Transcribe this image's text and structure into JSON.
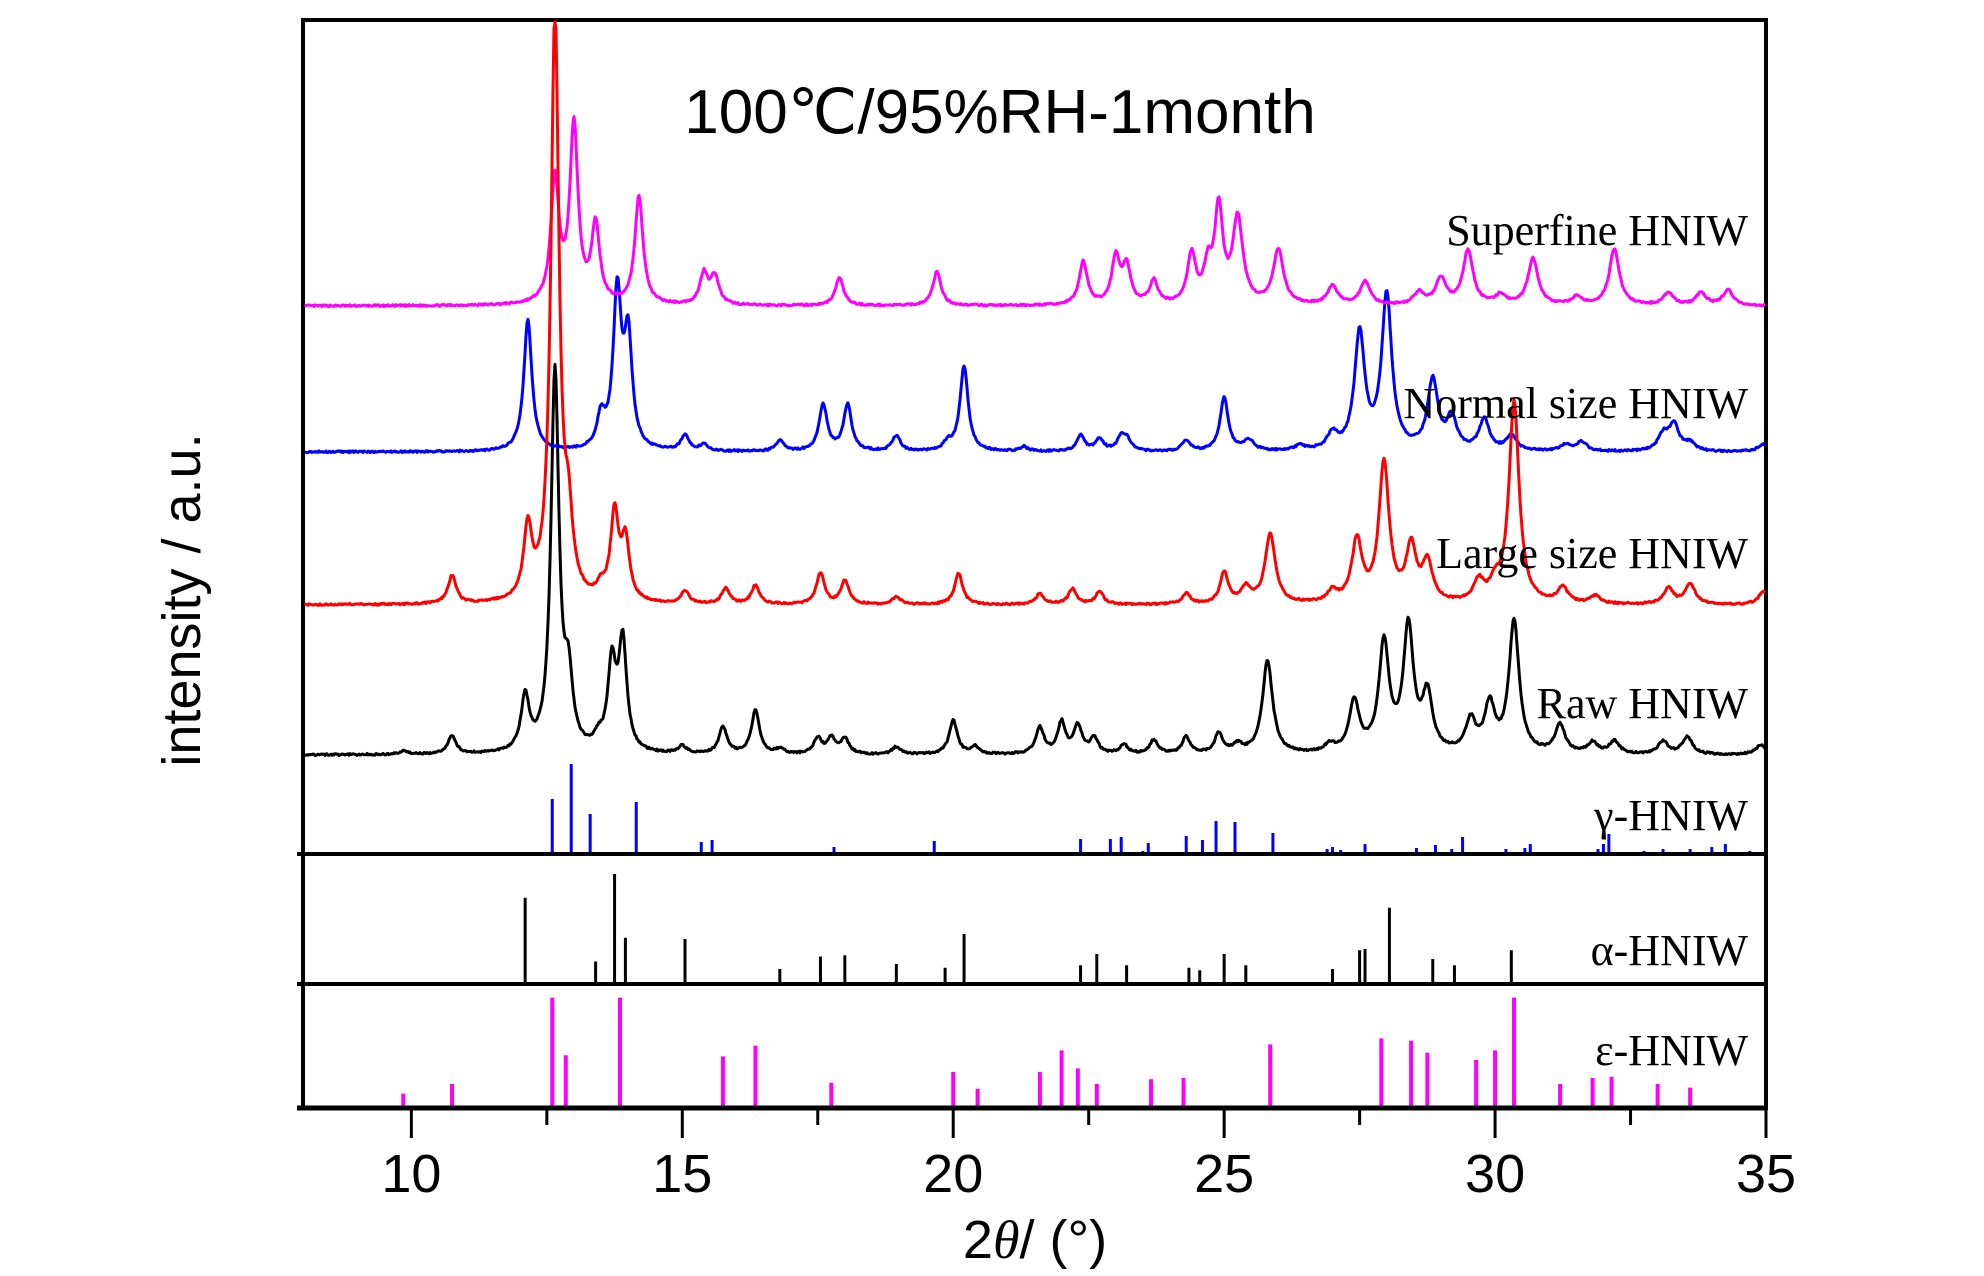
{
  "chart_data": {
    "type": "line",
    "title": "100℃/95%RH-1month",
    "xlabel": "2θ/ (°)",
    "xlabel_parts": {
      "prefix": "2",
      "theta": "θ",
      "suffix": "/ (°)"
    },
    "ylabel": "intensity / a.u.",
    "xlim": [
      8,
      35
    ],
    "x_ticks": [
      10,
      15,
      20,
      25,
      30,
      35
    ],
    "x_minor_ticks": [
      12.5,
      17.5,
      22.5,
      27.5,
      32.5
    ],
    "grid": false,
    "series": [
      {
        "name": "Superfine HNIW",
        "color": "#ff00ff",
        "baseline_offset": 4,
        "peaks": [
          [
            12.65,
            0.8
          ],
          [
            13.0,
            1.15
          ],
          [
            13.4,
            0.5
          ],
          [
            14.2,
            0.7
          ],
          [
            15.4,
            0.2
          ],
          [
            15.6,
            0.18
          ],
          [
            17.9,
            0.18
          ],
          [
            19.7,
            0.22
          ],
          [
            22.4,
            0.28
          ],
          [
            23.0,
            0.3
          ],
          [
            23.2,
            0.24
          ],
          [
            23.7,
            0.15
          ],
          [
            24.4,
            0.32
          ],
          [
            24.7,
            0.22
          ],
          [
            24.9,
            0.6
          ],
          [
            25.25,
            0.55
          ],
          [
            26.0,
            0.35
          ],
          [
            27.0,
            0.12
          ],
          [
            27.6,
            0.15
          ],
          [
            28.6,
            0.08
          ],
          [
            29.0,
            0.17
          ],
          [
            29.5,
            0.35
          ],
          [
            30.1,
            0.06
          ],
          [
            30.7,
            0.3
          ],
          [
            31.5,
            0.05
          ],
          [
            32.2,
            0.36
          ],
          [
            33.2,
            0.08
          ],
          [
            33.8,
            0.08
          ],
          [
            34.3,
            0.1
          ]
        ]
      },
      {
        "name": "Normal size HNIW",
        "color": "#0000ff",
        "baseline_offset": 3,
        "peaks": [
          [
            12.15,
            0.85
          ],
          [
            13.5,
            0.2
          ],
          [
            13.8,
            1.0
          ],
          [
            14.0,
            0.7
          ],
          [
            15.05,
            0.1
          ],
          [
            15.4,
            0.04
          ],
          [
            16.8,
            0.07
          ],
          [
            17.6,
            0.3
          ],
          [
            18.05,
            0.3
          ],
          [
            18.95,
            0.1
          ],
          [
            19.9,
            0.05
          ],
          [
            20.2,
            0.55
          ],
          [
            21.3,
            0.03
          ],
          [
            22.35,
            0.1
          ],
          [
            22.7,
            0.08
          ],
          [
            23.1,
            0.08
          ],
          [
            23.2,
            0.07
          ],
          [
            24.3,
            0.07
          ],
          [
            25.0,
            0.35
          ],
          [
            25.45,
            0.07
          ],
          [
            26.4,
            0.03
          ],
          [
            27.0,
            0.1
          ],
          [
            27.5,
            0.75
          ],
          [
            28.0,
            1.0
          ],
          [
            28.85,
            0.45
          ],
          [
            29.2,
            0.2
          ],
          [
            29.8,
            0.2
          ],
          [
            30.3,
            0.1
          ],
          [
            31.3,
            0.04
          ],
          [
            31.6,
            0.06
          ],
          [
            33.1,
            0.1
          ],
          [
            33.3,
            0.17
          ],
          [
            33.6,
            0.05
          ],
          [
            34.95,
            0.05
          ]
        ]
      },
      {
        "name": "Large size HNIW",
        "color": "#ff0000",
        "baseline_offset": 2,
        "peaks": [
          [
            10.75,
            0.18
          ],
          [
            12.15,
            0.45
          ],
          [
            12.65,
            3.8
          ],
          [
            12.9,
            0.42
          ],
          [
            13.5,
            0.07
          ],
          [
            13.75,
            0.55
          ],
          [
            13.95,
            0.38
          ],
          [
            15.05,
            0.08
          ],
          [
            15.8,
            0.1
          ],
          [
            16.35,
            0.12
          ],
          [
            17.55,
            0.2
          ],
          [
            18.0,
            0.15
          ],
          [
            18.95,
            0.05
          ],
          [
            20.1,
            0.2
          ],
          [
            21.6,
            0.07
          ],
          [
            22.2,
            0.1
          ],
          [
            22.7,
            0.08
          ],
          [
            24.3,
            0.07
          ],
          [
            25.0,
            0.2
          ],
          [
            25.85,
            0.45
          ],
          [
            25.4,
            0.1
          ],
          [
            27.0,
            0.07
          ],
          [
            27.45,
            0.4
          ],
          [
            27.95,
            0.9
          ],
          [
            28.45,
            0.35
          ],
          [
            28.75,
            0.25
          ],
          [
            29.7,
            0.13
          ],
          [
            30.0,
            0.1
          ],
          [
            30.35,
            1.3
          ],
          [
            31.25,
            0.1
          ],
          [
            31.85,
            0.05
          ],
          [
            33.2,
            0.1
          ],
          [
            33.6,
            0.13
          ],
          [
            34.95,
            0.08
          ]
        ]
      },
      {
        "name": "Raw HNIW",
        "color": "#000000",
        "baseline_offset": 1,
        "peaks": [
          [
            9.85,
            0.02
          ],
          [
            10.75,
            0.12
          ],
          [
            12.1,
            0.35
          ],
          [
            12.65,
            2.45
          ],
          [
            12.9,
            0.42
          ],
          [
            13.45,
            0.07
          ],
          [
            13.7,
            0.55
          ],
          [
            13.9,
            0.7
          ],
          [
            15.0,
            0.05
          ],
          [
            15.75,
            0.17
          ],
          [
            16.35,
            0.28
          ],
          [
            16.8,
            0.03
          ],
          [
            17.5,
            0.1
          ],
          [
            17.75,
            0.1
          ],
          [
            18.0,
            0.1
          ],
          [
            18.95,
            0.05
          ],
          [
            20.0,
            0.22
          ],
          [
            20.4,
            0.05
          ],
          [
            21.6,
            0.17
          ],
          [
            22.0,
            0.2
          ],
          [
            22.3,
            0.18
          ],
          [
            22.6,
            0.1
          ],
          [
            23.15,
            0.06
          ],
          [
            23.7,
            0.09
          ],
          [
            24.3,
            0.11
          ],
          [
            24.9,
            0.13
          ],
          [
            25.25,
            0.05
          ],
          [
            25.8,
            0.6
          ],
          [
            26.95,
            0.05
          ],
          [
            27.4,
            0.33
          ],
          [
            27.95,
            0.7
          ],
          [
            28.4,
            0.8
          ],
          [
            28.75,
            0.36
          ],
          [
            29.55,
            0.2
          ],
          [
            29.9,
            0.3
          ],
          [
            30.35,
            0.85
          ],
          [
            31.2,
            0.18
          ],
          [
            31.8,
            0.07
          ],
          [
            32.2,
            0.08
          ],
          [
            33.1,
            0.08
          ],
          [
            33.55,
            0.11
          ],
          [
            34.9,
            0.06
          ]
        ]
      }
    ],
    "reference_panels": [
      {
        "name": "γ-HNIW",
        "color": "#0000ff",
        "sticks": [
          [
            12.6,
            0.55
          ],
          [
            12.95,
            0.9
          ],
          [
            13.3,
            0.4
          ],
          [
            14.15,
            0.52
          ],
          [
            15.35,
            0.12
          ],
          [
            15.55,
            0.14
          ],
          [
            16.3,
            0.01
          ],
          [
            17.8,
            0.07
          ],
          [
            19.65,
            0.13
          ],
          [
            20.5,
            0.01
          ],
          [
            20.95,
            0.01
          ],
          [
            22.35,
            0.15
          ],
          [
            22.9,
            0.15
          ],
          [
            23.1,
            0.17
          ],
          [
            23.5,
            0.03
          ],
          [
            23.6,
            0.11
          ],
          [
            24.3,
            0.18
          ],
          [
            24.6,
            0.14
          ],
          [
            24.85,
            0.33
          ],
          [
            25.2,
            0.32
          ],
          [
            25.9,
            0.21
          ],
          [
            26.6,
            0.01
          ],
          [
            26.9,
            0.05
          ],
          [
            27.0,
            0.07
          ],
          [
            27.15,
            0.04
          ],
          [
            27.6,
            0.1
          ],
          [
            28.1,
            0.01
          ],
          [
            28.55,
            0.06
          ],
          [
            28.9,
            0.09
          ],
          [
            29.2,
            0.05
          ],
          [
            29.4,
            0.17
          ],
          [
            30.2,
            0.05
          ],
          [
            30.55,
            0.06
          ],
          [
            30.65,
            0.1
          ],
          [
            31.3,
            0.02
          ],
          [
            31.9,
            0.05
          ],
          [
            32.0,
            0.1
          ],
          [
            32.1,
            0.2
          ],
          [
            32.75,
            0.03
          ],
          [
            33.1,
            0.05
          ],
          [
            33.6,
            0.05
          ],
          [
            34.0,
            0.07
          ],
          [
            34.25,
            0.1
          ],
          [
            34.7,
            0.03
          ]
        ]
      },
      {
        "name": "α-HNIW",
        "color": "#000000",
        "sticks": [
          [
            12.1,
            0.69
          ],
          [
            13.4,
            0.18
          ],
          [
            13.75,
            0.88
          ],
          [
            13.95,
            0.37
          ],
          [
            15.05,
            0.36
          ],
          [
            16.8,
            0.12
          ],
          [
            17.55,
            0.22
          ],
          [
            18.0,
            0.23
          ],
          [
            18.95,
            0.16
          ],
          [
            19.85,
            0.13
          ],
          [
            20.2,
            0.4
          ],
          [
            22.35,
            0.15
          ],
          [
            22.65,
            0.24
          ],
          [
            23.2,
            0.15
          ],
          [
            24.35,
            0.13
          ],
          [
            24.55,
            0.11
          ],
          [
            25.0,
            0.24
          ],
          [
            25.4,
            0.15
          ],
          [
            27.0,
            0.12
          ],
          [
            27.5,
            0.27
          ],
          [
            27.6,
            0.28
          ],
          [
            28.05,
            0.61
          ],
          [
            28.85,
            0.2
          ],
          [
            29.25,
            0.15
          ],
          [
            30.3,
            0.27
          ]
        ]
      },
      {
        "name": "ε-HNIW",
        "color": "#ff00ff",
        "sticks": [
          [
            9.85,
            0.12
          ],
          [
            10.75,
            0.2
          ],
          [
            12.6,
            0.92
          ],
          [
            12.85,
            0.44
          ],
          [
            13.85,
            0.92
          ],
          [
            15.75,
            0.43
          ],
          [
            16.35,
            0.52
          ],
          [
            17.75,
            0.21
          ],
          [
            20.0,
            0.3
          ],
          [
            20.45,
            0.16
          ],
          [
            21.6,
            0.3
          ],
          [
            22.0,
            0.48
          ],
          [
            22.3,
            0.33
          ],
          [
            22.65,
            0.2
          ],
          [
            23.65,
            0.24
          ],
          [
            24.25,
            0.25
          ],
          [
            25.85,
            0.53
          ],
          [
            27.9,
            0.58
          ],
          [
            28.45,
            0.56
          ],
          [
            28.75,
            0.46
          ],
          [
            29.65,
            0.4
          ],
          [
            30.0,
            0.48
          ],
          [
            30.35,
            0.92
          ],
          [
            31.2,
            0.2
          ],
          [
            31.8,
            0.25
          ],
          [
            32.15,
            0.26
          ],
          [
            33.0,
            0.2
          ],
          [
            33.6,
            0.17
          ]
        ]
      }
    ]
  }
}
